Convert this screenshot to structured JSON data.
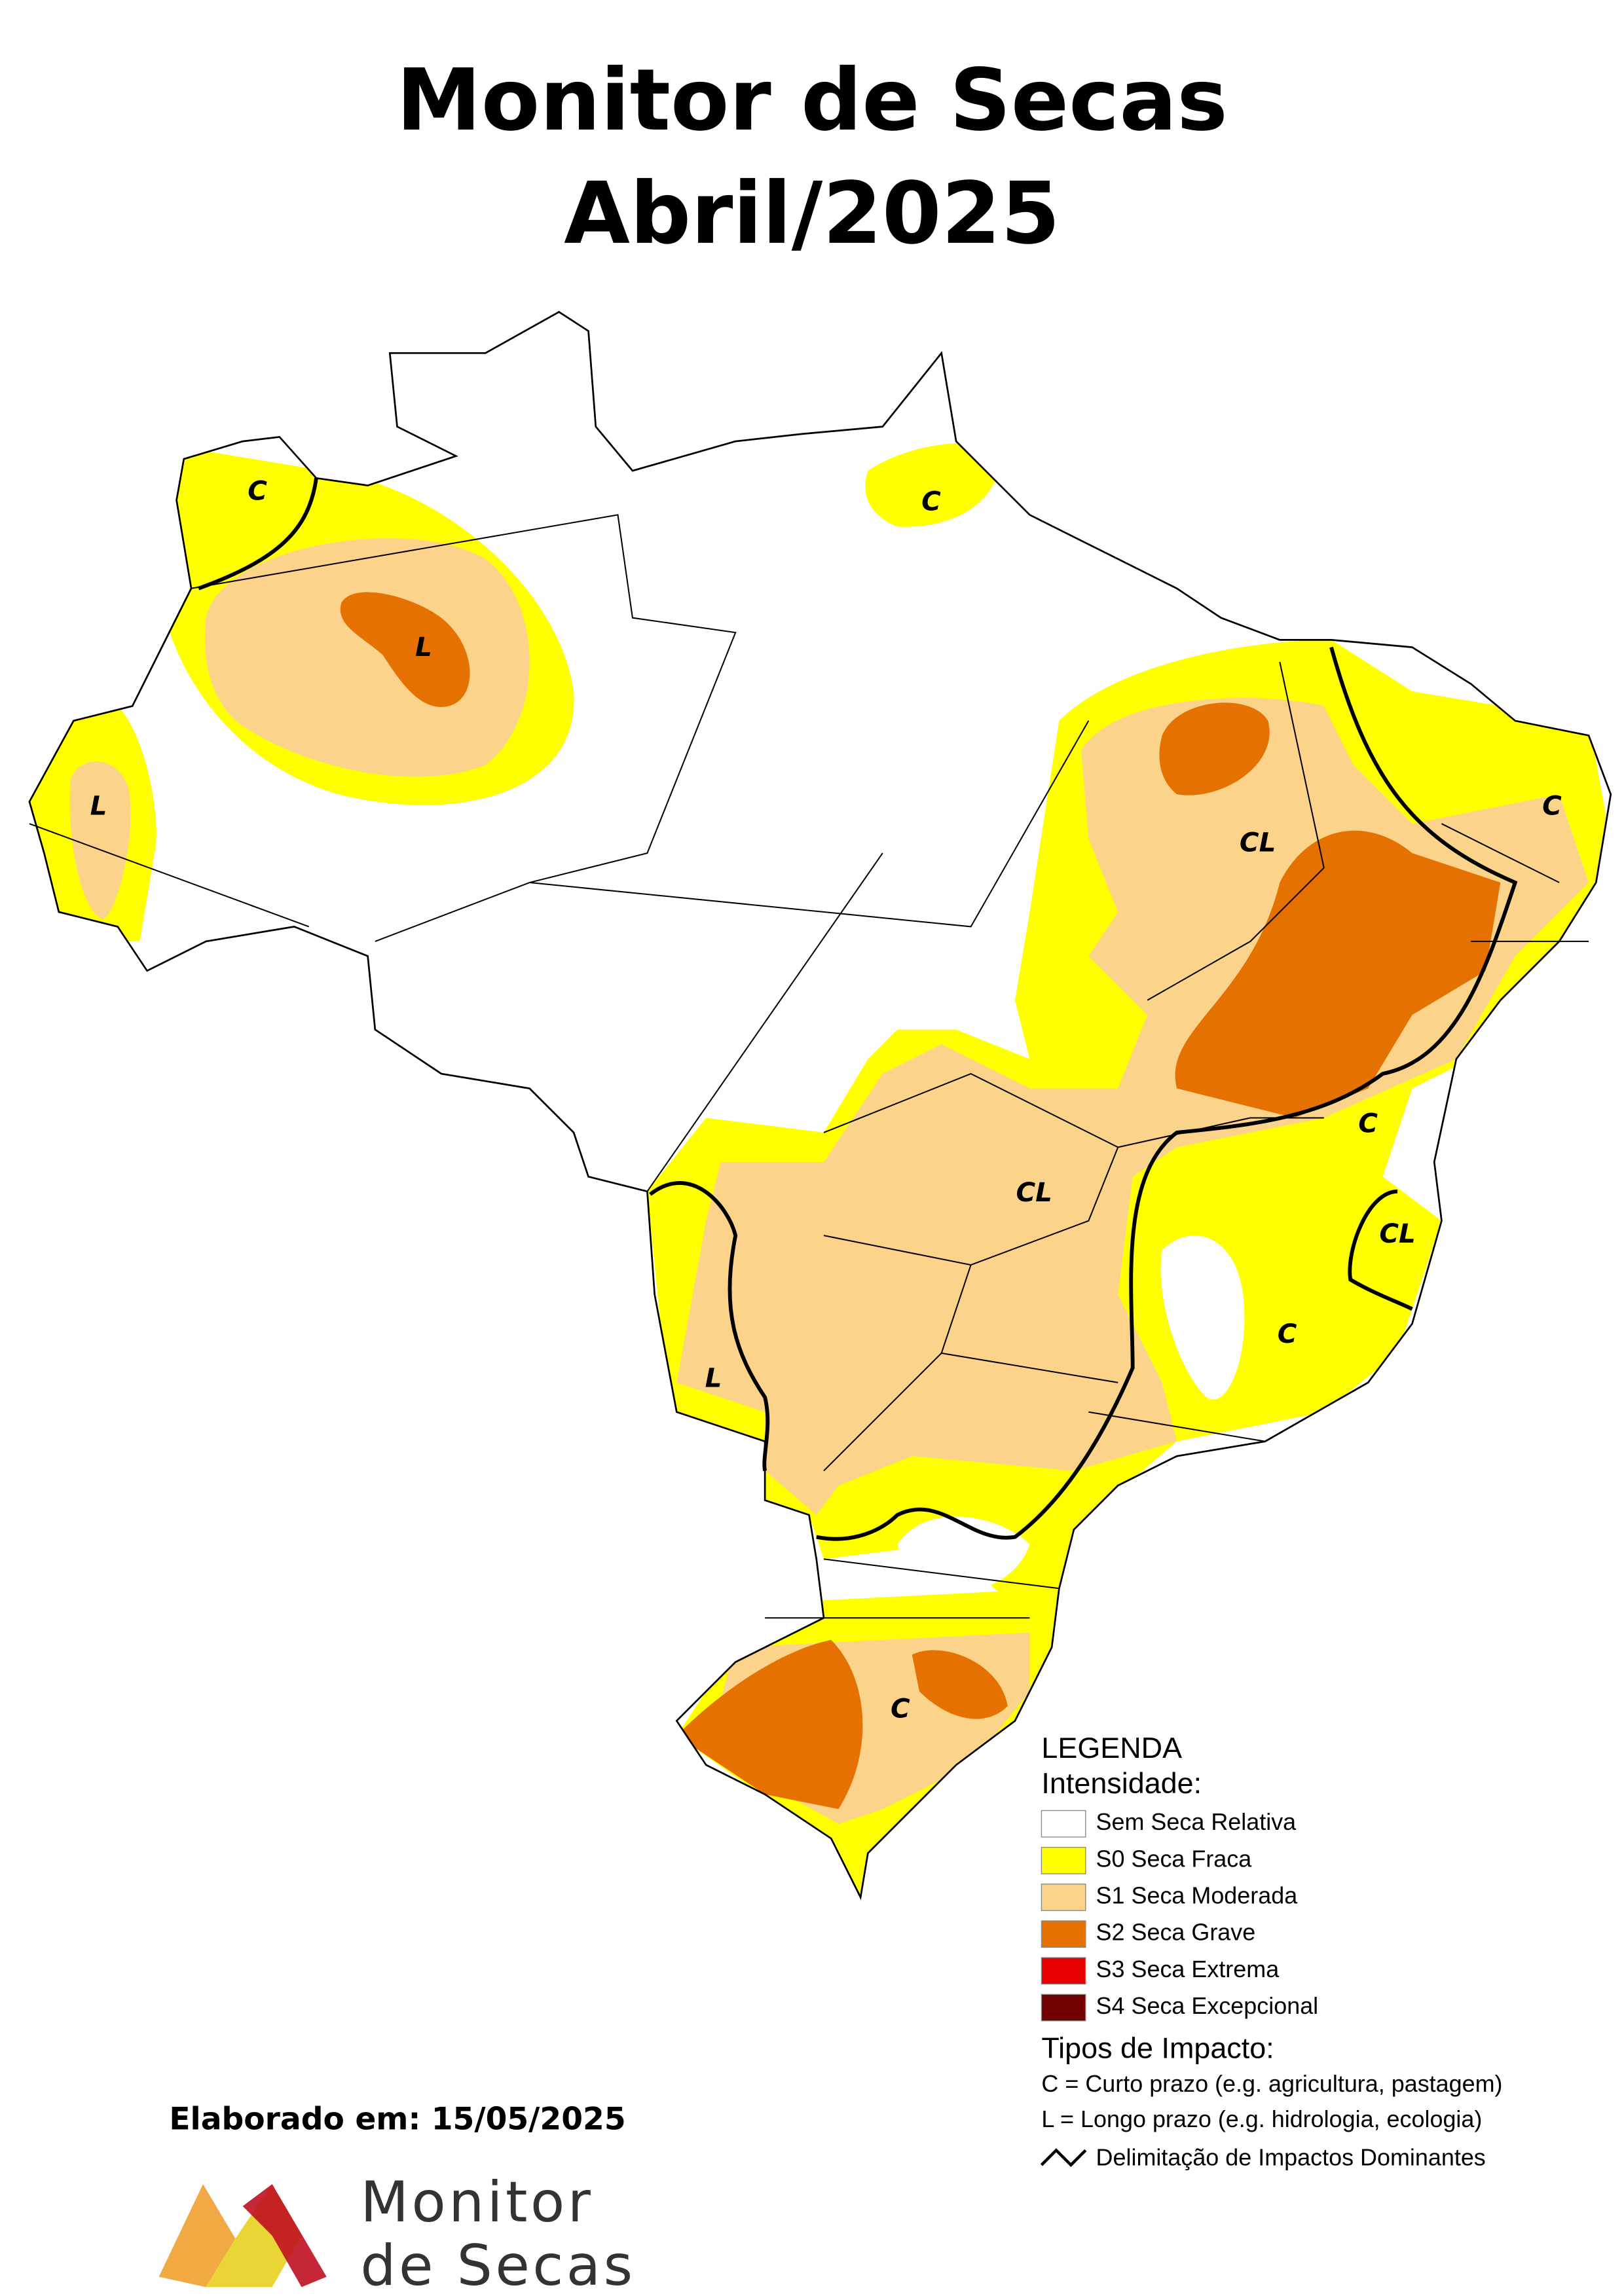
{
  "header": {
    "title": [
      "Monitor de Secas",
      "Abril/2025"
    ]
  },
  "map": {
    "impact_labels": [
      "C",
      "C",
      "L",
      "L",
      "CL",
      "C",
      "C",
      "CL",
      "C",
      "CL",
      "L",
      "C"
    ]
  },
  "legend": {
    "title": "LEGENDA",
    "subtitle": "Intensidade:",
    "items": [
      {
        "label": "Sem Seca Relativa",
        "color": "#ffffff"
      },
      {
        "label": "S0 Seca Fraca",
        "color": "#ffff00"
      },
      {
        "label": "S1 Seca Moderada",
        "color": "#fcd38a"
      },
      {
        "label": "S2 Seca Grave",
        "color": "#e57200"
      },
      {
        "label": "S3 Seca Extrema",
        "color": "#e60000"
      },
      {
        "label": "S4 Seca Excepcional",
        "color": "#730000"
      }
    ],
    "impact_title": "Tipos de Impacto:",
    "impact_types": [
      "C = Curto prazo (e.g. agricultura, pastagem)",
      "L = Longo prazo (e.g. hidrologia, ecologia)"
    ],
    "boundary": "Delimitação de Impactos Dominantes"
  },
  "footer": {
    "date": "Elaborado em: 15/05/2025",
    "logo": [
      "Monitor",
      "de Secas"
    ]
  }
}
